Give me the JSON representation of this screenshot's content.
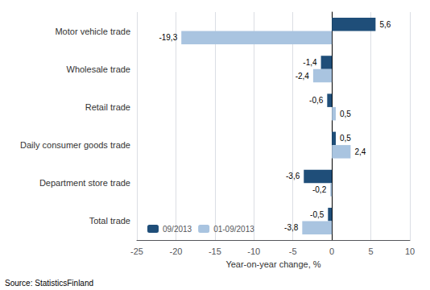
{
  "chart_data": {
    "type": "bar",
    "orientation": "horizontal",
    "categories": [
      "Motor vehicle trade",
      "Wholesale trade",
      "Retail trade",
      "Daily consumer goods trade",
      "Department store trade",
      "Total trade"
    ],
    "series": [
      {
        "name": "09/2013",
        "color": "#1F4E79",
        "values": [
          5.6,
          -1.4,
          -0.6,
          0.5,
          -3.6,
          -0.5
        ],
        "value_labels": [
          "5,6",
          "-1,4",
          "-0,6",
          "0,5",
          "-3,6",
          "-0,5"
        ]
      },
      {
        "name": "01-09/2013",
        "color": "#A9C4E0",
        "values": [
          -19.3,
          -2.4,
          0.5,
          2.4,
          -0.2,
          -3.8
        ],
        "value_labels": [
          "-19,3",
          "-2,4",
          "0,5",
          "2,4",
          "-0,2",
          "-3,8"
        ]
      }
    ],
    "xlabel": "Year-on-year change, %",
    "xlim": [
      -25,
      10
    ],
    "xticks": [
      -25,
      -20,
      -15,
      -10,
      -5,
      0,
      5,
      10
    ],
    "grid": true,
    "legend": "lower left",
    "data_labels": true,
    "annotations": [
      "Source: StatisticsFinland"
    ]
  }
}
